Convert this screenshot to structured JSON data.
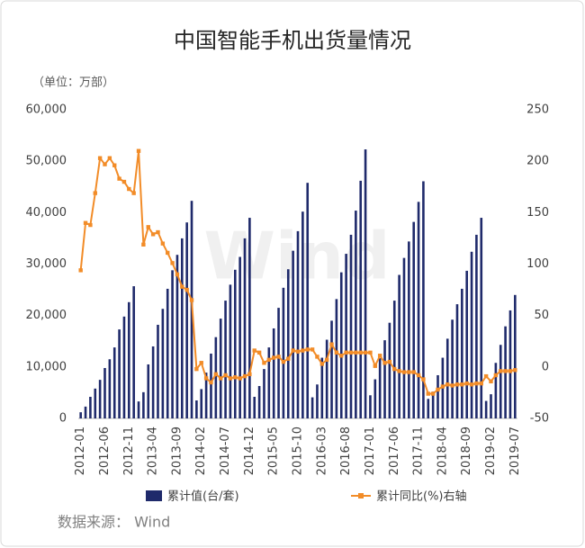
{
  "chart_data": {
    "type": "bar_line",
    "title": "中国智能手机出货量情况",
    "unit": "（单位：万部）",
    "source": "数据来源： Wind",
    "watermark": "Wind",
    "categories": [
      "2012-01",
      null,
      null,
      null,
      null,
      "2012-06",
      null,
      null,
      null,
      null,
      "2012-11",
      null,
      null,
      null,
      null,
      "2013-04",
      null,
      null,
      null,
      null,
      "2013-09",
      null,
      null,
      null,
      null,
      "2014-02",
      null,
      null,
      null,
      null,
      "2014-07",
      null,
      null,
      null,
      null,
      "2014-12",
      null,
      null,
      null,
      null,
      "2015-05",
      null,
      null,
      null,
      null,
      "2015-10",
      null,
      null,
      null,
      null,
      "2016-03",
      null,
      null,
      null,
      null,
      "2016-08",
      null,
      null,
      null,
      null,
      "2017-01",
      null,
      null,
      null,
      null,
      "2017-06",
      null,
      null,
      null,
      null,
      "2017-11",
      null,
      null,
      null,
      null,
      "2018-04",
      null,
      null,
      null,
      null,
      "2018-09",
      null,
      null,
      null,
      null,
      "2019-02",
      null,
      null,
      null,
      null,
      "2019-07"
    ],
    "series": [
      {
        "name": "累计值(台/套)",
        "type": "bar",
        "color": "#1f2a6b",
        "axis": "y",
        "values": [
          1200,
          2300,
          4200,
          5800,
          7500,
          9800,
          11500,
          13800,
          17300,
          19800,
          22600,
          25700,
          3300,
          5100,
          10500,
          14000,
          18200,
          21300,
          25200,
          28800,
          31800,
          35000,
          38100,
          42300,
          3500,
          5700,
          8900,
          12600,
          15800,
          19400,
          22900,
          26000,
          28900,
          31400,
          35000,
          39000,
          4200,
          6300,
          9600,
          13800,
          17500,
          21500,
          25400,
          29000,
          32600,
          36400,
          40200,
          45800,
          4100,
          6600,
          11800,
          15300,
          19000,
          23200,
          28400,
          32000,
          35700,
          40400,
          46200,
          52300,
          4500,
          7600,
          11700,
          15200,
          18600,
          22900,
          27900,
          31200,
          34400,
          38200,
          42100,
          46100,
          3800,
          5200,
          8400,
          11800,
          15500,
          19200,
          22200,
          25200,
          28700,
          32400,
          35700,
          39000,
          3400,
          4700,
          10800,
          14300,
          17900,
          21000,
          24000
        ]
      },
      {
        "name": "累计同比(%)右轴",
        "type": "line",
        "color": "#f28c28",
        "axis": "y2",
        "values": [
          94,
          140,
          138,
          169,
          203,
          197,
          203,
          196,
          183,
          180,
          173,
          169,
          210,
          119,
          136,
          129,
          131,
          120,
          111,
          101,
          90,
          78,
          75,
          65,
          -2,
          4,
          -11,
          -15,
          -7,
          -11,
          -8,
          -11,
          -10,
          -11,
          -9,
          -7,
          16,
          14,
          4,
          7,
          9,
          10,
          5,
          8,
          16,
          15,
          16,
          17,
          17,
          10,
          3,
          7,
          22,
          14,
          11,
          14,
          14,
          14,
          14,
          14,
          14,
          1,
          11,
          4,
          5,
          -2,
          -4,
          -5,
          -5,
          -5,
          -8,
          -12,
          -26,
          -26,
          -22,
          -19,
          -17,
          -18,
          -17,
          -17,
          -16,
          -17,
          -16,
          -16,
          -9,
          -14,
          -8,
          -4,
          -4,
          -4,
          -3
        ]
      }
    ],
    "ylim": [
      0,
      60000
    ],
    "yticks": [
      0,
      {
        "value": 10000,
        "label": "10,000"
      },
      {
        "value": 20000,
        "label": "20,000"
      },
      {
        "value": 30000,
        "label": "30,000"
      },
      {
        "value": 40000,
        "label": "40,000"
      },
      {
        "value": 50000,
        "label": "50,000"
      },
      {
        "value": 60000,
        "label": "60,000"
      }
    ],
    "y2lim": [
      -50,
      250
    ],
    "y2ticks": [
      -50,
      0,
      50,
      100,
      150,
      200,
      250
    ],
    "grid": false
  }
}
